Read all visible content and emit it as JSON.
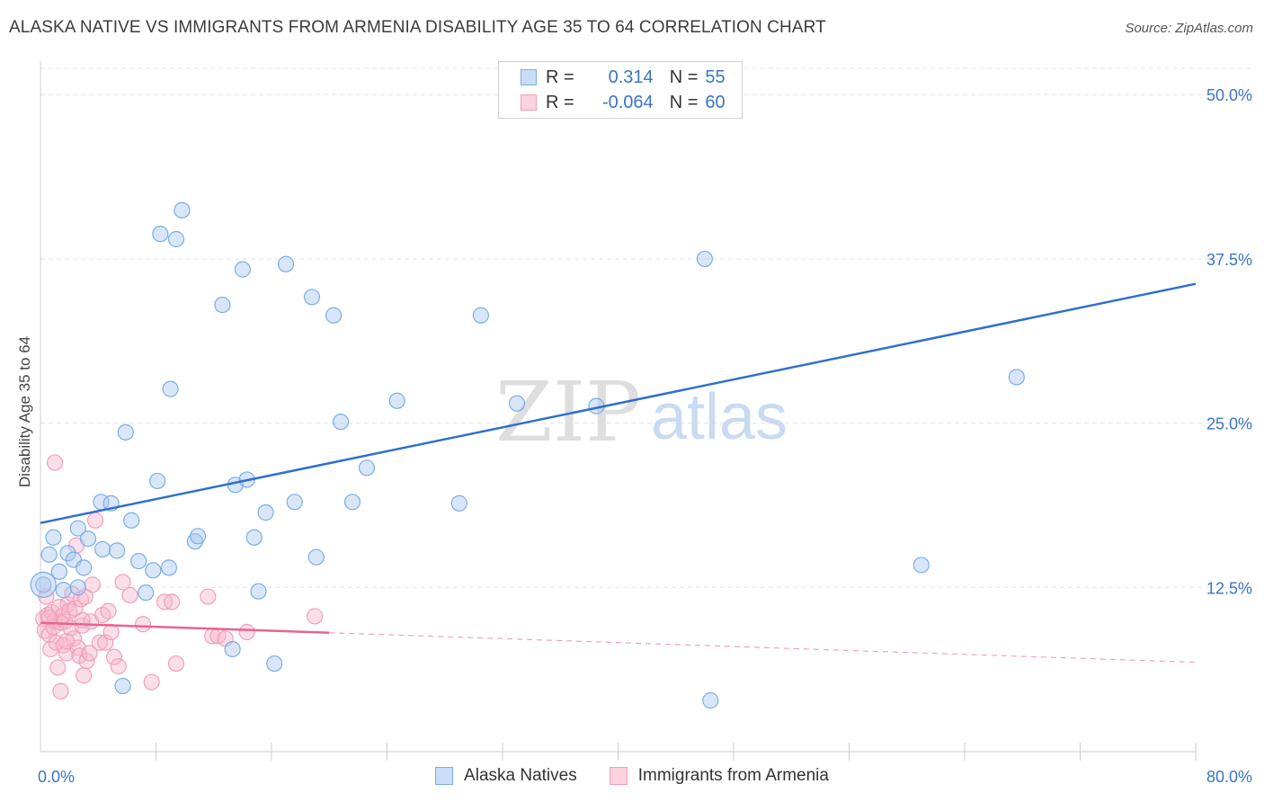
{
  "header": {
    "title": "ALASKA NATIVE VS IMMIGRANTS FROM ARMENIA DISABILITY AGE 35 TO 64 CORRELATION CHART",
    "source": "Source: ZipAtlas.com"
  },
  "watermark": {
    "zip": "ZIP",
    "atlas": "atlas"
  },
  "legend_top": {
    "r_label": "R =",
    "n_label": "N =",
    "rows": [
      {
        "r": "0.314",
        "n": "55"
      },
      {
        "r": "-0.064",
        "n": "60"
      }
    ]
  },
  "chart_data": {
    "type": "scatter",
    "title": "ALASKA NATIVE VS IMMIGRANTS FROM ARMENIA DISABILITY AGE 35 TO 64 CORRELATION CHART",
    "xlabel": "",
    "ylabel": "Disability Age 35 to 64",
    "xlim": [
      0,
      80
    ],
    "ylim": [
      0,
      52
    ],
    "x_tick_labels": [
      "0.0%",
      "80.0%"
    ],
    "y_ticks": [
      12.5,
      25.0,
      37.5,
      50.0
    ],
    "y_tick_labels": [
      "12.5%",
      "25.0%",
      "37.5%",
      "50.0%"
    ],
    "grid": true,
    "legend_placement": "bottom",
    "series": [
      {
        "name": "Alaska Natives",
        "color": "#7aaee8",
        "trend": {
          "x": [
            0,
            80
          ],
          "y": [
            17.4,
            35.6
          ],
          "dashed_from": null
        },
        "points": [
          [
            0.2,
            12.7
          ],
          [
            0.6,
            15.0
          ],
          [
            0.9,
            16.3
          ],
          [
            1.3,
            13.7
          ],
          [
            1.6,
            12.3
          ],
          [
            1.9,
            15.1
          ],
          [
            2.3,
            14.6
          ],
          [
            2.6,
            12.5
          ],
          [
            2.6,
            17.0
          ],
          [
            3.0,
            14.0
          ],
          [
            3.3,
            16.2
          ],
          [
            4.3,
            15.4
          ],
          [
            4.2,
            19.0
          ],
          [
            4.9,
            18.9
          ],
          [
            5.3,
            15.3
          ],
          [
            5.7,
            5.0
          ],
          [
            5.9,
            24.3
          ],
          [
            6.3,
            17.6
          ],
          [
            6.8,
            14.5
          ],
          [
            7.3,
            12.1
          ],
          [
            7.8,
            13.8
          ],
          [
            8.1,
            20.6
          ],
          [
            8.3,
            39.4
          ],
          [
            8.9,
            14.0
          ],
          [
            9.0,
            27.6
          ],
          [
            9.4,
            39.0
          ],
          [
            9.8,
            41.2
          ],
          [
            10.7,
            16.0
          ],
          [
            10.9,
            16.4
          ],
          [
            12.6,
            34.0
          ],
          [
            13.3,
            7.8
          ],
          [
            13.5,
            20.3
          ],
          [
            14.0,
            36.7
          ],
          [
            14.3,
            20.7
          ],
          [
            14.8,
            16.3
          ],
          [
            15.1,
            12.2
          ],
          [
            15.6,
            18.2
          ],
          [
            16.2,
            6.7
          ],
          [
            17.0,
            37.1
          ],
          [
            17.6,
            19.0
          ],
          [
            18.8,
            34.6
          ],
          [
            19.1,
            14.8
          ],
          [
            20.3,
            33.2
          ],
          [
            20.8,
            25.1
          ],
          [
            21.6,
            19.0
          ],
          [
            22.6,
            21.6
          ],
          [
            24.7,
            26.7
          ],
          [
            29.0,
            18.9
          ],
          [
            30.5,
            33.2
          ],
          [
            33.0,
            26.5
          ],
          [
            38.5,
            26.3
          ],
          [
            46.0,
            37.5
          ],
          [
            46.4,
            3.9
          ],
          [
            67.6,
            28.5
          ],
          [
            61.0,
            14.2
          ]
        ]
      },
      {
        "name": "Immigrants from Armenia",
        "color": "#f0a0b8",
        "trend": {
          "x": [
            0,
            80
          ],
          "y": [
            9.8,
            6.8
          ],
          "dashed_from": 20
        },
        "points": [
          [
            0.2,
            10.1
          ],
          [
            0.3,
            9.2
          ],
          [
            0.4,
            11.8
          ],
          [
            0.5,
            10.4
          ],
          [
            0.6,
            8.9
          ],
          [
            0.7,
            7.8
          ],
          [
            0.8,
            10.6
          ],
          [
            0.9,
            9.5
          ],
          [
            1.0,
            10.0
          ],
          [
            1.1,
            8.3
          ],
          [
            1.2,
            6.4
          ],
          [
            1.3,
            11.0
          ],
          [
            1.4,
            9.8
          ],
          [
            1.5,
            10.3
          ],
          [
            1.6,
            8.1
          ],
          [
            1.7,
            9.9
          ],
          [
            1.8,
            7.5
          ],
          [
            1.9,
            11.2
          ],
          [
            2.0,
            10.7
          ],
          [
            2.1,
            9.4
          ],
          [
            2.2,
            12.0
          ],
          [
            2.3,
            8.6
          ],
          [
            2.4,
            10.9
          ],
          [
            2.5,
            15.7
          ],
          [
            2.6,
            7.9
          ],
          [
            2.7,
            7.3
          ],
          [
            2.8,
            11.6
          ],
          [
            2.9,
            9.6
          ],
          [
            3.0,
            5.8
          ],
          [
            3.1,
            11.8
          ],
          [
            3.2,
            6.9
          ],
          [
            3.4,
            7.5
          ],
          [
            3.5,
            9.9
          ],
          [
            3.6,
            12.7
          ],
          [
            3.8,
            17.6
          ],
          [
            4.1,
            8.3
          ],
          [
            4.3,
            10.4
          ],
          [
            4.5,
            8.3
          ],
          [
            4.7,
            10.7
          ],
          [
            4.9,
            9.1
          ],
          [
            5.1,
            7.2
          ],
          [
            5.4,
            6.5
          ],
          [
            5.7,
            12.9
          ],
          [
            6.2,
            11.9
          ],
          [
            7.1,
            9.7
          ],
          [
            7.7,
            5.3
          ],
          [
            8.6,
            11.4
          ],
          [
            9.1,
            11.4
          ],
          [
            9.4,
            6.7
          ],
          [
            11.6,
            11.8
          ],
          [
            11.9,
            8.8
          ],
          [
            12.3,
            8.8
          ],
          [
            12.8,
            8.6
          ],
          [
            14.3,
            9.1
          ],
          [
            19.0,
            10.3
          ],
          [
            1.0,
            22.0
          ],
          [
            0.6,
            10.2
          ],
          [
            1.4,
            4.6
          ],
          [
            2.9,
            10.0
          ],
          [
            1.8,
            8.4
          ]
        ]
      }
    ]
  }
}
